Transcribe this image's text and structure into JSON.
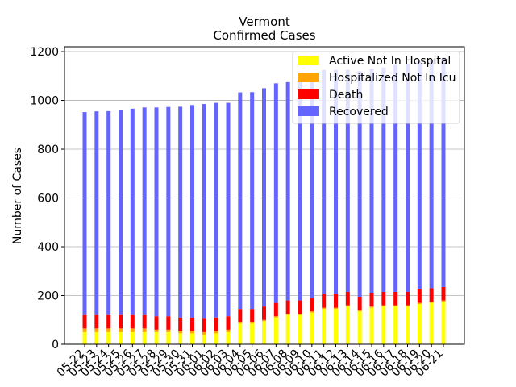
{
  "chart_data": {
    "type": "bar",
    "stacked": true,
    "title": "Vermont",
    "subtitle": "Confirmed Cases",
    "xlabel": "",
    "ylabel": "Number of Cases",
    "ylim": [
      0,
      1220
    ],
    "yticks": [
      0,
      200,
      400,
      600,
      800,
      1000,
      1200
    ],
    "grid": "y-axis",
    "legend_position": "top-right",
    "categories": [
      "05-22",
      "05-23",
      "05-24",
      "05-25",
      "05-26",
      "05-27",
      "05-28",
      "05-29",
      "05-30",
      "05-31",
      "06-01",
      "06-02",
      "06-03",
      "06-04",
      "06-05",
      "06-06",
      "06-07",
      "06-08",
      "06-09",
      "06-10",
      "06-11",
      "06-12",
      "06-13",
      "06-14",
      "06-15",
      "06-16",
      "06-17",
      "06-18",
      "06-19",
      "06-20",
      "06-21"
    ],
    "series": [
      {
        "name": "Active Not In Hospital",
        "color": "#ffff00",
        "values": [
          50,
          50,
          50,
          50,
          50,
          50,
          50,
          50,
          45,
          45,
          40,
          45,
          50,
          85,
          85,
          95,
          110,
          120,
          120,
          130,
          145,
          145,
          155,
          135,
          150,
          155,
          155,
          155,
          165,
          170,
          175
        ]
      },
      {
        "name": "Hospitalized Not In Icu",
        "color": "#ffa500",
        "values": [
          15,
          15,
          15,
          15,
          15,
          15,
          10,
          10,
          10,
          10,
          10,
          10,
          10,
          5,
          5,
          5,
          5,
          5,
          5,
          5,
          5,
          5,
          5,
          5,
          5,
          5,
          5,
          5,
          5,
          5,
          5
        ]
      },
      {
        "name": "Death",
        "color": "#ff0000",
        "values": [
          55,
          55,
          55,
          55,
          55,
          55,
          55,
          55,
          55,
          55,
          55,
          55,
          55,
          55,
          55,
          55,
          55,
          55,
          55,
          55,
          55,
          55,
          55,
          55,
          55,
          55,
          55,
          55,
          55,
          55,
          55
        ]
      },
      {
        "name": "Recovered",
        "color": "#6464ff",
        "values": [
          832,
          835,
          836,
          842,
          846,
          851,
          856,
          858,
          864,
          871,
          880,
          880,
          875,
          888,
          889,
          895,
          900,
          895,
          900,
          910,
          920,
          920,
          910,
          925,
          920,
          920,
          930,
          935,
          935,
          935,
          940
        ]
      }
    ]
  }
}
